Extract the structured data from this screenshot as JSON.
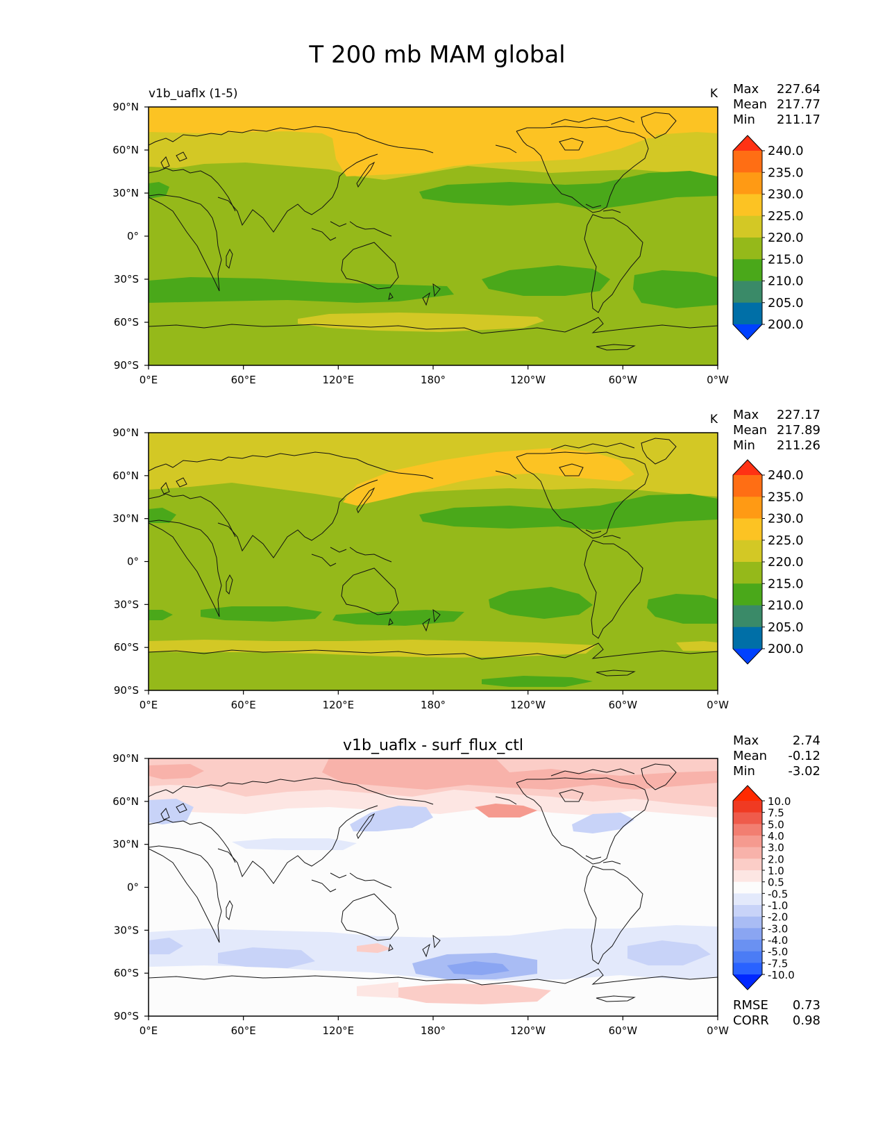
{
  "figure": {
    "title": "T 200 mb MAM global"
  },
  "palette": {
    "abs": [
      "#0041ff",
      "#006fa7",
      "#3a8a68",
      "#4aa81a",
      "#95b91a",
      "#d3c825",
      "#fcc323",
      "#ff9a14",
      "#ff6e14",
      "#ff3214"
    ],
    "diff": [
      "#0028ff",
      "#2962ff",
      "#4b7cf5",
      "#6a91f2",
      "#8aa5f2",
      "#a9bcf4",
      "#c8d3f8",
      "#e3e9fb",
      "#fcfcfc",
      "#fde6e3",
      "#fbcdc7",
      "#f8b2aa",
      "#f59a8f",
      "#f27e71",
      "#ef5b4b",
      "#f03a22",
      "#ff2a00"
    ],
    "land_line": "#111111"
  },
  "axes": {
    "lat_ticks": [
      "90°N",
      "60°N",
      "30°N",
      "0°",
      "30°S",
      "60°S",
      "90°S"
    ],
    "lon_ticks": [
      "0°E",
      "60°E",
      "120°E",
      "180°",
      "120°W",
      "60°W",
      "0°W"
    ]
  },
  "chart_data": [
    {
      "type": "heatmap",
      "name": "test",
      "left_title": "v1b_uaflx (1-5)",
      "center_title": "",
      "units": "K",
      "stats": {
        "max_label": "Max",
        "mean_label": "Mean",
        "min_label": "Min",
        "max": "227.64",
        "mean": "217.77",
        "min": "211.17"
      },
      "colorbar_levels": [
        "240.0",
        "235.0",
        "230.0",
        "225.0",
        "220.0",
        "215.0",
        "210.0",
        "205.0",
        "200.0"
      ],
      "lat_range": [
        -90,
        90
      ],
      "lon_range": [
        0,
        360
      ]
    },
    {
      "type": "heatmap",
      "name": "reference",
      "left_title": "",
      "center_title": "",
      "units": "K",
      "stats": {
        "max_label": "Max",
        "mean_label": "Mean",
        "min_label": "Min",
        "max": "227.17",
        "mean": "217.89",
        "min": "211.26"
      },
      "colorbar_levels": [
        "240.0",
        "235.0",
        "230.0",
        "225.0",
        "220.0",
        "215.0",
        "210.0",
        "205.0",
        "200.0"
      ],
      "lat_range": [
        -90,
        90
      ],
      "lon_range": [
        0,
        360
      ]
    },
    {
      "type": "heatmap",
      "name": "difference",
      "left_title": "",
      "center_title": "v1b_uaflx - surf_flux_ctl",
      "units": "",
      "stats": {
        "max_label": "Max",
        "mean_label": "Mean",
        "min_label": "Min",
        "max": "2.74",
        "mean": "-0.12",
        "min": "-3.02"
      },
      "colorbar_levels": [
        "10.0",
        "7.5",
        "5.0",
        "4.0",
        "3.0",
        "2.0",
        "1.0",
        "0.5",
        "-0.5",
        "-1.0",
        "-2.0",
        "-3.0",
        "-4.0",
        "-5.0",
        "-7.5",
        "-10.0"
      ],
      "metrics": {
        "rmse_label": "RMSE",
        "rmse": "0.73",
        "corr_label": "CORR",
        "corr": "0.98"
      },
      "lat_range": [
        -90,
        90
      ],
      "lon_range": [
        0,
        360
      ]
    }
  ]
}
